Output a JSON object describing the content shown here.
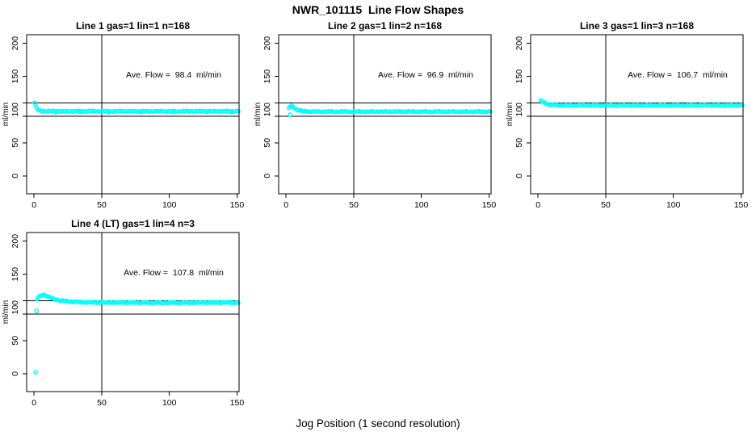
{
  "page": {
    "title": "NWR_101115  Line Flow Shapes",
    "x_axis_label": "Jog Position (1 second resolution)"
  },
  "colors": {
    "points": "#00FFFF",
    "axis": "#000000",
    "text": "#000000",
    "background": "#FFFFFF"
  },
  "chart_data": [
    {
      "type": "scatter",
      "title": "Line 1 gas=1 lin=1 n=168",
      "grid_pos": {
        "row": 0,
        "col": 0
      },
      "line": 1,
      "gas": 1,
      "lin": 1,
      "n": 168,
      "annotation": "Ave. Flow =  98.4  ml/min",
      "ave_flow_ml_min": 98.4,
      "ylabel": "ml/min",
      "xlim": [
        -5.5,
        151.5
      ],
      "ylim": [
        -27,
        213
      ],
      "x_ticks": [
        0,
        50,
        100,
        150
      ],
      "y_tick_labels": [
        0,
        50,
        100,
        150,
        200
      ],
      "y_tick_marks": [
        0,
        50,
        90,
        110,
        150,
        200
      ],
      "ref_lines_h": [
        90,
        110
      ],
      "ref_line_v": 50,
      "grid": false,
      "points": [
        [
          0.5,
          110
        ],
        [
          1.2,
          106
        ],
        [
          2,
          102
        ],
        [
          3,
          99.5
        ],
        [
          4,
          98.5
        ],
        [
          6,
          98
        ],
        [
          12,
          97.6
        ],
        [
          18,
          97.8
        ],
        [
          24,
          97.4
        ],
        [
          30,
          97.7
        ],
        [
          36,
          97.4
        ],
        [
          42,
          97.7
        ],
        [
          48,
          97.5
        ],
        [
          54,
          97.7
        ],
        [
          60,
          97.4
        ],
        [
          66,
          97.7
        ],
        [
          72,
          97.4
        ],
        [
          78,
          97.6
        ],
        [
          84,
          97.5
        ],
        [
          90,
          97.7
        ],
        [
          96,
          97.4
        ],
        [
          102,
          97.6
        ],
        [
          108,
          97.4
        ],
        [
          114,
          97.7
        ],
        [
          120,
          97.5
        ],
        [
          126,
          97.7
        ],
        [
          132,
          97.4
        ],
        [
          138,
          97.6
        ],
        [
          144,
          97.5
        ],
        [
          151,
          97.6
        ]
      ],
      "sparse_points": [
        [
          16,
          95.6
        ],
        [
          34,
          95.9
        ],
        [
          55,
          95.5
        ],
        [
          79,
          95.8
        ],
        [
          103,
          95.6
        ],
        [
          128,
          95.9
        ],
        [
          146,
          95.7
        ]
      ],
      "outliers": []
    },
    {
      "type": "scatter",
      "title": "Line 2 gas=1 lin=2 n=168",
      "grid_pos": {
        "row": 0,
        "col": 1
      },
      "line": 2,
      "gas": 1,
      "lin": 2,
      "n": 168,
      "annotation": "Ave. Flow =  96.9  ml/min",
      "ave_flow_ml_min": 96.9,
      "ylabel": "ml/min",
      "xlim": [
        -5.5,
        151.5
      ],
      "ylim": [
        -27,
        213
      ],
      "x_ticks": [
        0,
        50,
        100,
        150
      ],
      "y_tick_labels": [
        0,
        50,
        100,
        150,
        200
      ],
      "y_tick_marks": [
        0,
        50,
        90,
        110,
        150,
        200
      ],
      "ref_lines_h": [
        90,
        110
      ],
      "ref_line_v": 50,
      "grid": false,
      "points": [
        [
          2,
          102.5
        ],
        [
          3,
          104.5
        ],
        [
          4,
          105.5
        ],
        [
          5,
          104.5
        ],
        [
          6,
          103
        ],
        [
          7,
          101.5
        ],
        [
          8,
          100.3
        ],
        [
          9,
          99.3
        ],
        [
          10,
          98.6
        ],
        [
          12,
          97.9
        ],
        [
          15,
          97.3
        ],
        [
          18,
          97.1
        ],
        [
          24,
          96.9
        ],
        [
          30,
          97.1
        ],
        [
          36,
          96.8
        ],
        [
          42,
          97.0
        ],
        [
          48,
          96.8
        ],
        [
          54,
          97.1
        ],
        [
          60,
          96.8
        ],
        [
          66,
          97.0
        ],
        [
          72,
          96.8
        ],
        [
          78,
          97.1
        ],
        [
          84,
          96.9
        ],
        [
          90,
          97.1
        ],
        [
          96,
          96.8
        ],
        [
          102,
          97.0
        ],
        [
          108,
          96.8
        ],
        [
          114,
          97.1
        ],
        [
          120,
          96.9
        ],
        [
          126,
          97.0
        ],
        [
          132,
          96.8
        ],
        [
          138,
          97.0
        ],
        [
          144,
          96.9
        ],
        [
          151,
          97.0
        ]
      ],
      "sparse_points": [],
      "outliers": [
        [
          3,
          92.3
        ]
      ]
    },
    {
      "type": "scatter",
      "title": "Line 3 gas=1 lin=3 n=168",
      "grid_pos": {
        "row": 0,
        "col": 2
      },
      "line": 3,
      "gas": 1,
      "lin": 3,
      "n": 168,
      "annotation": "Ave. Flow =  106.7  ml/min",
      "ave_flow_ml_min": 106.7,
      "ylabel": "ml/min",
      "xlim": [
        -5.5,
        151.5
      ],
      "ylim": [
        -27,
        213
      ],
      "x_ticks": [
        0,
        50,
        100,
        150
      ],
      "y_tick_labels": [
        0,
        50,
        100,
        150,
        200
      ],
      "y_tick_marks": [
        0,
        50,
        90,
        110,
        150,
        200
      ],
      "ref_lines_h": [
        90,
        110
      ],
      "ref_line_v": 50,
      "grid": false,
      "points": [
        [
          2,
          114
        ],
        [
          3,
          112.5
        ],
        [
          4,
          111.2
        ],
        [
          5,
          110.2
        ],
        [
          6,
          109.3
        ],
        [
          7,
          108.5
        ],
        [
          8,
          107.8
        ],
        [
          10,
          107.2
        ],
        [
          12,
          106.9
        ],
        [
          15,
          106.7
        ],
        [
          18,
          106.8
        ],
        [
          24,
          106.6
        ],
        [
          30,
          106.8
        ],
        [
          36,
          106.5
        ],
        [
          42,
          106.7
        ],
        [
          48,
          106.5
        ],
        [
          54,
          106.8
        ],
        [
          60,
          106.5
        ],
        [
          66,
          106.7
        ],
        [
          72,
          106.5
        ],
        [
          78,
          106.8
        ],
        [
          84,
          106.6
        ],
        [
          90,
          106.8
        ],
        [
          96,
          106.5
        ],
        [
          102,
          106.7
        ],
        [
          108,
          106.5
        ],
        [
          114,
          106.8
        ],
        [
          120,
          106.6
        ],
        [
          126,
          106.7
        ],
        [
          132,
          106.5
        ],
        [
          138,
          106.7
        ],
        [
          144,
          106.6
        ],
        [
          151,
          106.7
        ]
      ],
      "sparse_points": [],
      "outliers": []
    },
    {
      "type": "scatter",
      "title": "Line 4 (LT) gas=1 lin=4 n=3",
      "grid_pos": {
        "row": 1,
        "col": 0
      },
      "line": 4,
      "gas": 1,
      "lin": 4,
      "n": 3,
      "annotation": "Ave. Flow =  107.8  ml/min",
      "ave_flow_ml_min": 107.8,
      "ylabel": "ml/min",
      "xlim": [
        -5.5,
        151.5
      ],
      "ylim": [
        -27,
        213
      ],
      "x_ticks": [
        0,
        50,
        100,
        150
      ],
      "y_tick_labels": [
        0,
        50,
        100,
        150,
        200
      ],
      "y_tick_marks": [
        0,
        50,
        90,
        110,
        150,
        200
      ],
      "ref_lines_h": [
        90,
        110
      ],
      "ref_line_v": 50,
      "grid": false,
      "points": [
        [
          2,
          112
        ],
        [
          3,
          114.5
        ],
        [
          4,
          116.5
        ],
        [
          5,
          118
        ],
        [
          6,
          118.8
        ],
        [
          7,
          119
        ],
        [
          8,
          118.5
        ],
        [
          9,
          117.7
        ],
        [
          10,
          116.7
        ],
        [
          11,
          115.7
        ],
        [
          12,
          114.7
        ],
        [
          14,
          113.1
        ],
        [
          16,
          112
        ],
        [
          18,
          111
        ],
        [
          20,
          110.3
        ],
        [
          23,
          109.5
        ],
        [
          26,
          108.9
        ],
        [
          30,
          108.4
        ],
        [
          34,
          108
        ],
        [
          38,
          107.8
        ],
        [
          42,
          107.6
        ],
        [
          46,
          107.4
        ],
        [
          50,
          107.5
        ],
        [
          54,
          107.3
        ],
        [
          58,
          107.6
        ],
        [
          62,
          107.2
        ],
        [
          66,
          107.5
        ],
        [
          70,
          107.1
        ],
        [
          74,
          107.4
        ],
        [
          78,
          107.0
        ],
        [
          82,
          107.3
        ],
        [
          86,
          106.9
        ],
        [
          90,
          107.2
        ],
        [
          94,
          106.8
        ],
        [
          98,
          107.1
        ],
        [
          102,
          107.3
        ],
        [
          106,
          106.9
        ],
        [
          110,
          107.2
        ],
        [
          114,
          107.0
        ],
        [
          118,
          107.3
        ],
        [
          122,
          107.1
        ],
        [
          126,
          107.4
        ],
        [
          130,
          107.2
        ],
        [
          134,
          107.5
        ],
        [
          138,
          107.3
        ],
        [
          142,
          107.6
        ],
        [
          146,
          107.2
        ],
        [
          151,
          106.9
        ]
      ],
      "sparse_points": [],
      "outliers": [
        [
          1.2,
          2
        ],
        [
          1.8,
          94.5
        ]
      ]
    }
  ]
}
